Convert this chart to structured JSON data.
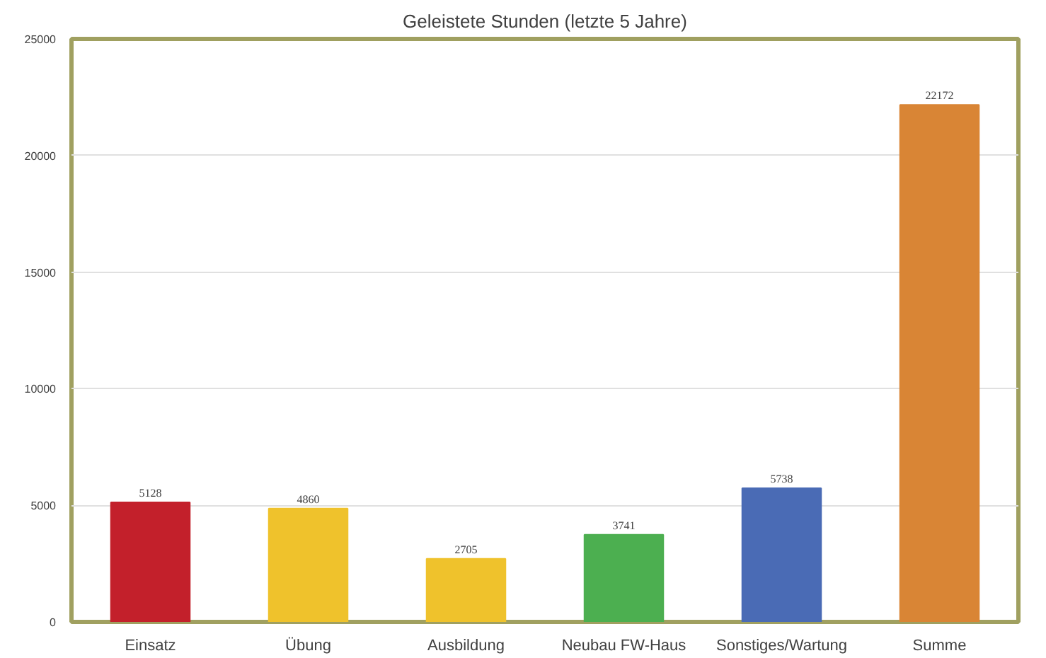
{
  "chart_data": {
    "type": "bar",
    "title": "Geleistete Stunden (letzte 5 Jahre)",
    "categories": [
      "Einsatz",
      "Übung",
      "Ausbildung",
      "Neubau FW-Haus",
      "Sonstiges/Wartung",
      "Summe"
    ],
    "values": [
      5128,
      4860,
      2705,
      3741,
      5738,
      22172
    ],
    "colors": [
      "#c3202b",
      "#efc22c",
      "#efc22c",
      "#4caf50",
      "#4a6bb5",
      "#d98535"
    ],
    "ylim": [
      0,
      25000
    ],
    "yticks": [
      0,
      5000,
      10000,
      15000,
      20000,
      25000
    ],
    "grid": "y",
    "data_labels": true
  }
}
